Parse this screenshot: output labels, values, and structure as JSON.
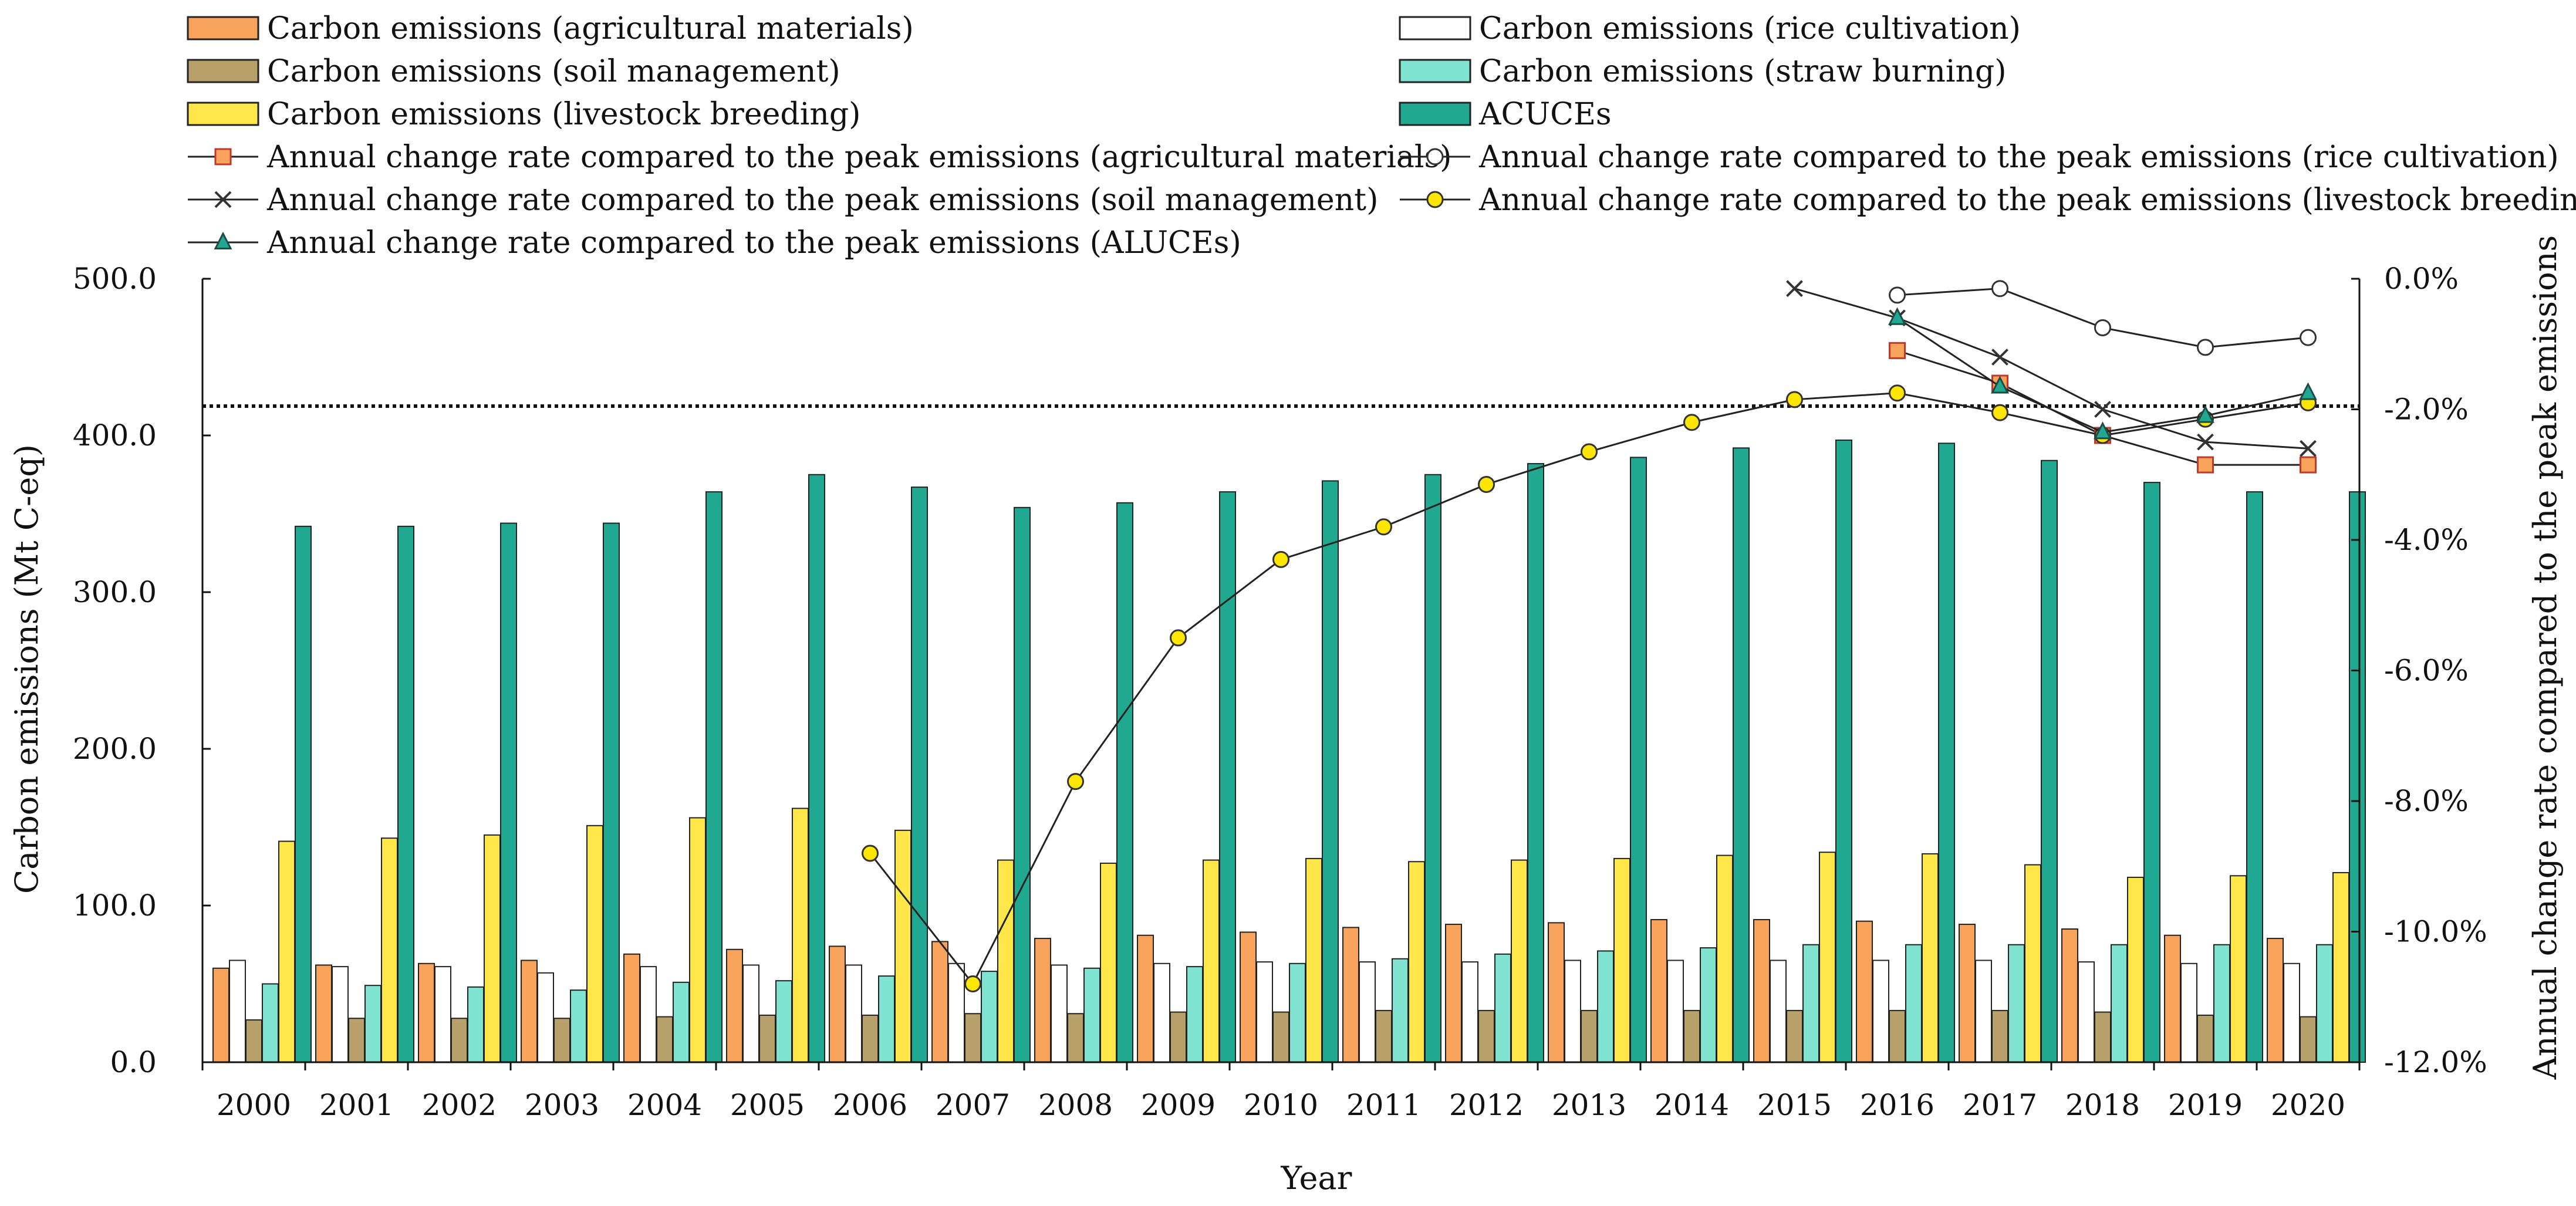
{
  "chart_data": {
    "type": "bar",
    "title": "",
    "xlabel": "Year",
    "ylabel": "Carbon emissions (Mt C-eq)",
    "y2label": "Annual change rate compared to the peak emissions",
    "ylim": [
      0,
      500
    ],
    "y_ticks": [
      "0.0",
      "100.0",
      "200.0",
      "300.0",
      "400.0",
      "500.0"
    ],
    "y2lim": [
      -12,
      0
    ],
    "y2_ticks": [
      "0.0%",
      "-2.0%",
      "-4.0%",
      "-6.0%",
      "-8.0%",
      "-10.0%",
      "-12.0%"
    ],
    "reference_line_y2": -1.95,
    "categories": [
      "2000",
      "2001",
      "2002",
      "2003",
      "2004",
      "2005",
      "2006",
      "2007",
      "2008",
      "2009",
      "2010",
      "2011",
      "2012",
      "2013",
      "2014",
      "2015",
      "2016",
      "2017",
      "2018",
      "2019",
      "2020"
    ],
    "series": [
      {
        "name": "Carbon emissions (agricultural materials)",
        "kind": "bar",
        "color": "#F7A35C",
        "values": [
          60,
          62,
          63,
          65,
          69,
          72,
          74,
          77,
          79,
          81,
          83,
          86,
          88,
          89,
          91,
          91,
          90,
          88,
          85,
          81,
          79
        ]
      },
      {
        "name": "Carbon emissions (rice cultivation)",
        "kind": "bar",
        "color": "#FFFFFF",
        "values": [
          65,
          61,
          61,
          57,
          61,
          62,
          62,
          63,
          62,
          63,
          64,
          64,
          64,
          65,
          65,
          65,
          65,
          65,
          64,
          63,
          63
        ]
      },
      {
        "name": "Carbon emissions (soil management)",
        "kind": "bar",
        "color": "#B8A06A",
        "values": [
          27,
          28,
          28,
          28,
          29,
          30,
          30,
          31,
          31,
          32,
          32,
          33,
          33,
          33,
          33,
          33,
          33,
          33,
          32,
          30,
          29
        ]
      },
      {
        "name": "Carbon emissions (straw burning)",
        "kind": "bar",
        "color": "#7FE3CF",
        "values": [
          50,
          49,
          48,
          46,
          51,
          52,
          55,
          58,
          60,
          61,
          63,
          66,
          69,
          71,
          73,
          75,
          75,
          75,
          75,
          75,
          75
        ]
      },
      {
        "name": "Carbon emissions (livestock breeding)",
        "kind": "bar",
        "color": "#FFE74A",
        "values": [
          141,
          143,
          145,
          151,
          156,
          162,
          148,
          129,
          127,
          129,
          130,
          128,
          129,
          130,
          132,
          134,
          133,
          126,
          118,
          119,
          121
        ]
      },
      {
        "name": "ACUCEs",
        "kind": "bar",
        "color": "#20A890",
        "values": [
          342,
          342,
          344,
          344,
          364,
          375,
          367,
          354,
          357,
          364,
          371,
          375,
          382,
          386,
          392,
          397,
          395,
          384,
          370,
          364,
          364
        ]
      }
    ],
    "rate_series": [
      {
        "name": "Annual change rate compared to the peak emissions (agricultural materials)",
        "marker": "square",
        "color": "#F7A35C",
        "x": [
          "2016",
          "2017",
          "2018",
          "2019",
          "2020"
        ],
        "values": [
          -1.1,
          -1.6,
          -2.4,
          -2.85,
          -2.85
        ]
      },
      {
        "name": "Annual change rate compared to the peak emissions (rice cultivation)",
        "marker": "circle-open",
        "color": "#FFFFFF",
        "x": [
          "2016",
          "2017",
          "2018",
          "2019",
          "2020"
        ],
        "values": [
          -0.25,
          -0.15,
          -0.75,
          -1.05,
          -0.9
        ]
      },
      {
        "name": "Annual change rate compared to the peak emissions (soil management)",
        "marker": "cross",
        "color": "#333333",
        "x": [
          "2015",
          "2016",
          "2017",
          "2018",
          "2019",
          "2020"
        ],
        "values": [
          -0.15,
          -0.6,
          -1.2,
          -2.0,
          -2.5,
          -2.6
        ]
      },
      {
        "name": "Annual change rate compared to the peak emissions (livestock breeding)",
        "marker": "circle-filled",
        "color": "#FFE600",
        "x": [
          "2006",
          "2007",
          "2008",
          "2009",
          "2010",
          "2011",
          "2012",
          "2013",
          "2014",
          "2015",
          "2016",
          "2017",
          "2018",
          "2019",
          "2020"
        ],
        "values": [
          -8.8,
          -10.8,
          -7.7,
          -5.5,
          -4.3,
          -3.8,
          -3.15,
          -2.65,
          -2.2,
          -1.85,
          -1.75,
          -2.05,
          -2.4,
          -2.15,
          -1.9
        ]
      },
      {
        "name": "Annual change rate compared to the peak emissions (ALUCEs)",
        "marker": "triangle",
        "color": "#20A890",
        "x": [
          "2016",
          "2017",
          "2018",
          "2019",
          "2020"
        ],
        "values": [
          -0.6,
          -1.65,
          -2.35,
          -2.1,
          -1.75
        ]
      }
    ],
    "legend_position": "top"
  }
}
